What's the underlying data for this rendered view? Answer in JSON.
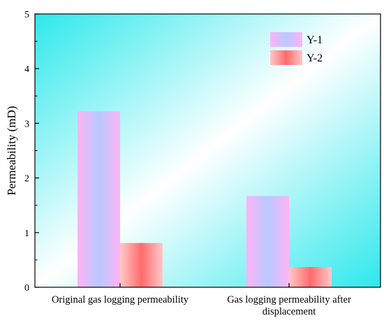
{
  "chart_data": {
    "type": "bar",
    "categories": [
      [
        "Original gas logging permeability"
      ],
      [
        "Gas logging permeability after",
        "displacement"
      ]
    ],
    "series": [
      {
        "name": "Y-1",
        "values": [
          3.22,
          1.67
        ]
      },
      {
        "name": "Y-2",
        "values": [
          0.81,
          0.37
        ]
      }
    ],
    "ylabel": "Permeability (mD)",
    "ylim": [
      0,
      5
    ],
    "yticks": [
      "0",
      "1",
      "2",
      "3",
      "4",
      "5"
    ],
    "grid": false,
    "legend_position": "top-right",
    "colors": {
      "background_start": "#2ee8ec",
      "background_mid": "#ffffff",
      "background_end": "#2ee8ec",
      "y1_gradient": [
        "#ffb3f5",
        "#b8c9ff",
        "#ffb3f5"
      ],
      "y2_gradient": [
        "#ffc8c8",
        "#ff6b6b",
        "#ffc8c8"
      ]
    }
  }
}
